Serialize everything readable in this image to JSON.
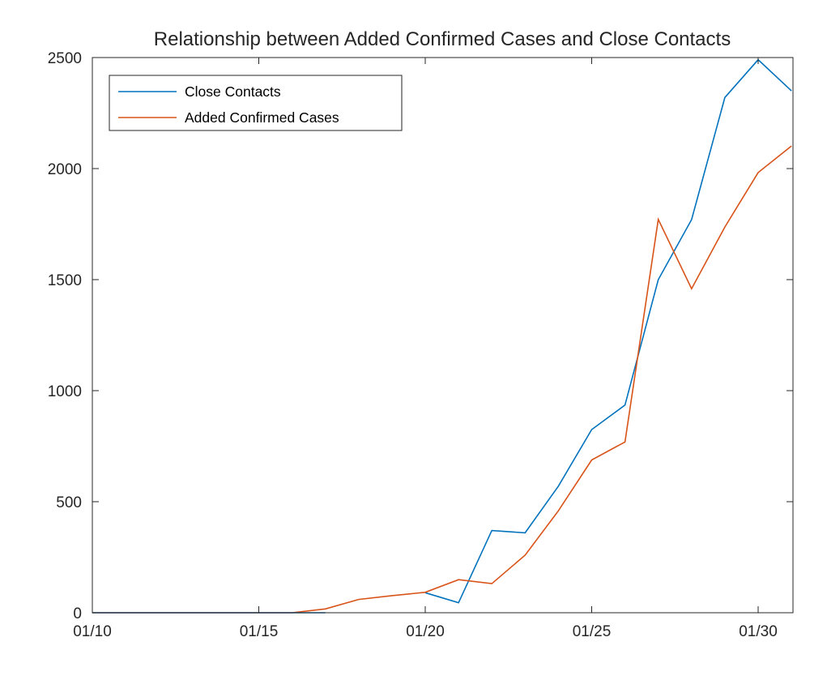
{
  "chart_data": {
    "type": "line",
    "title": "Relationship between Added Confirmed Cases and Close Contacts",
    "xlabel": "",
    "ylabel": "",
    "x_ticks": [
      "01/10",
      "01/15",
      "01/20",
      "01/25",
      "01/30"
    ],
    "y_ticks": [
      "0",
      "500",
      "1000",
      "1500",
      "2000",
      "2500"
    ],
    "ylim": [
      0,
      2500
    ],
    "legend_position": "top-left",
    "grid": false,
    "series": [
      {
        "name": "Close Contacts",
        "color": "#0072BD",
        "x": [
          "01/20",
          "01/21",
          "01/22",
          "01/23",
          "01/24",
          "01/25",
          "01/26",
          "01/27",
          "01/28",
          "01/29",
          "01/30",
          "01/31"
        ],
        "values": [
          90,
          45,
          370,
          360,
          570,
          825,
          935,
          1500,
          1770,
          2320,
          2490,
          2350
        ]
      },
      {
        "name": "Added Confirmed Cases",
        "color": "#D95319",
        "x": [
          "01/10",
          "01/11",
          "01/12",
          "01/13",
          "01/14",
          "01/15",
          "01/16",
          "01/17",
          "01/18",
          "01/19",
          "01/20",
          "01/21",
          "01/22",
          "01/23",
          "01/24",
          "01/25",
          "01/26",
          "01/27",
          "01/28",
          "01/29",
          "01/30",
          "01/31"
        ],
        "values": [
          0,
          0,
          0,
          0,
          0,
          0,
          0,
          17,
          60,
          77,
          92,
          149,
          131,
          259,
          459,
          688,
          769,
          1771,
          1459,
          1737,
          1982,
          2102
        ]
      },
      {
        "name": "",
        "color": "#0072BD",
        "x": [
          "01/10",
          "01/11",
          "01/12",
          "01/13",
          "01/14",
          "01/15",
          "01/16",
          "01/17"
        ],
        "values": [
          0,
          0,
          0,
          0,
          0,
          0,
          0,
          0
        ]
      }
    ]
  }
}
